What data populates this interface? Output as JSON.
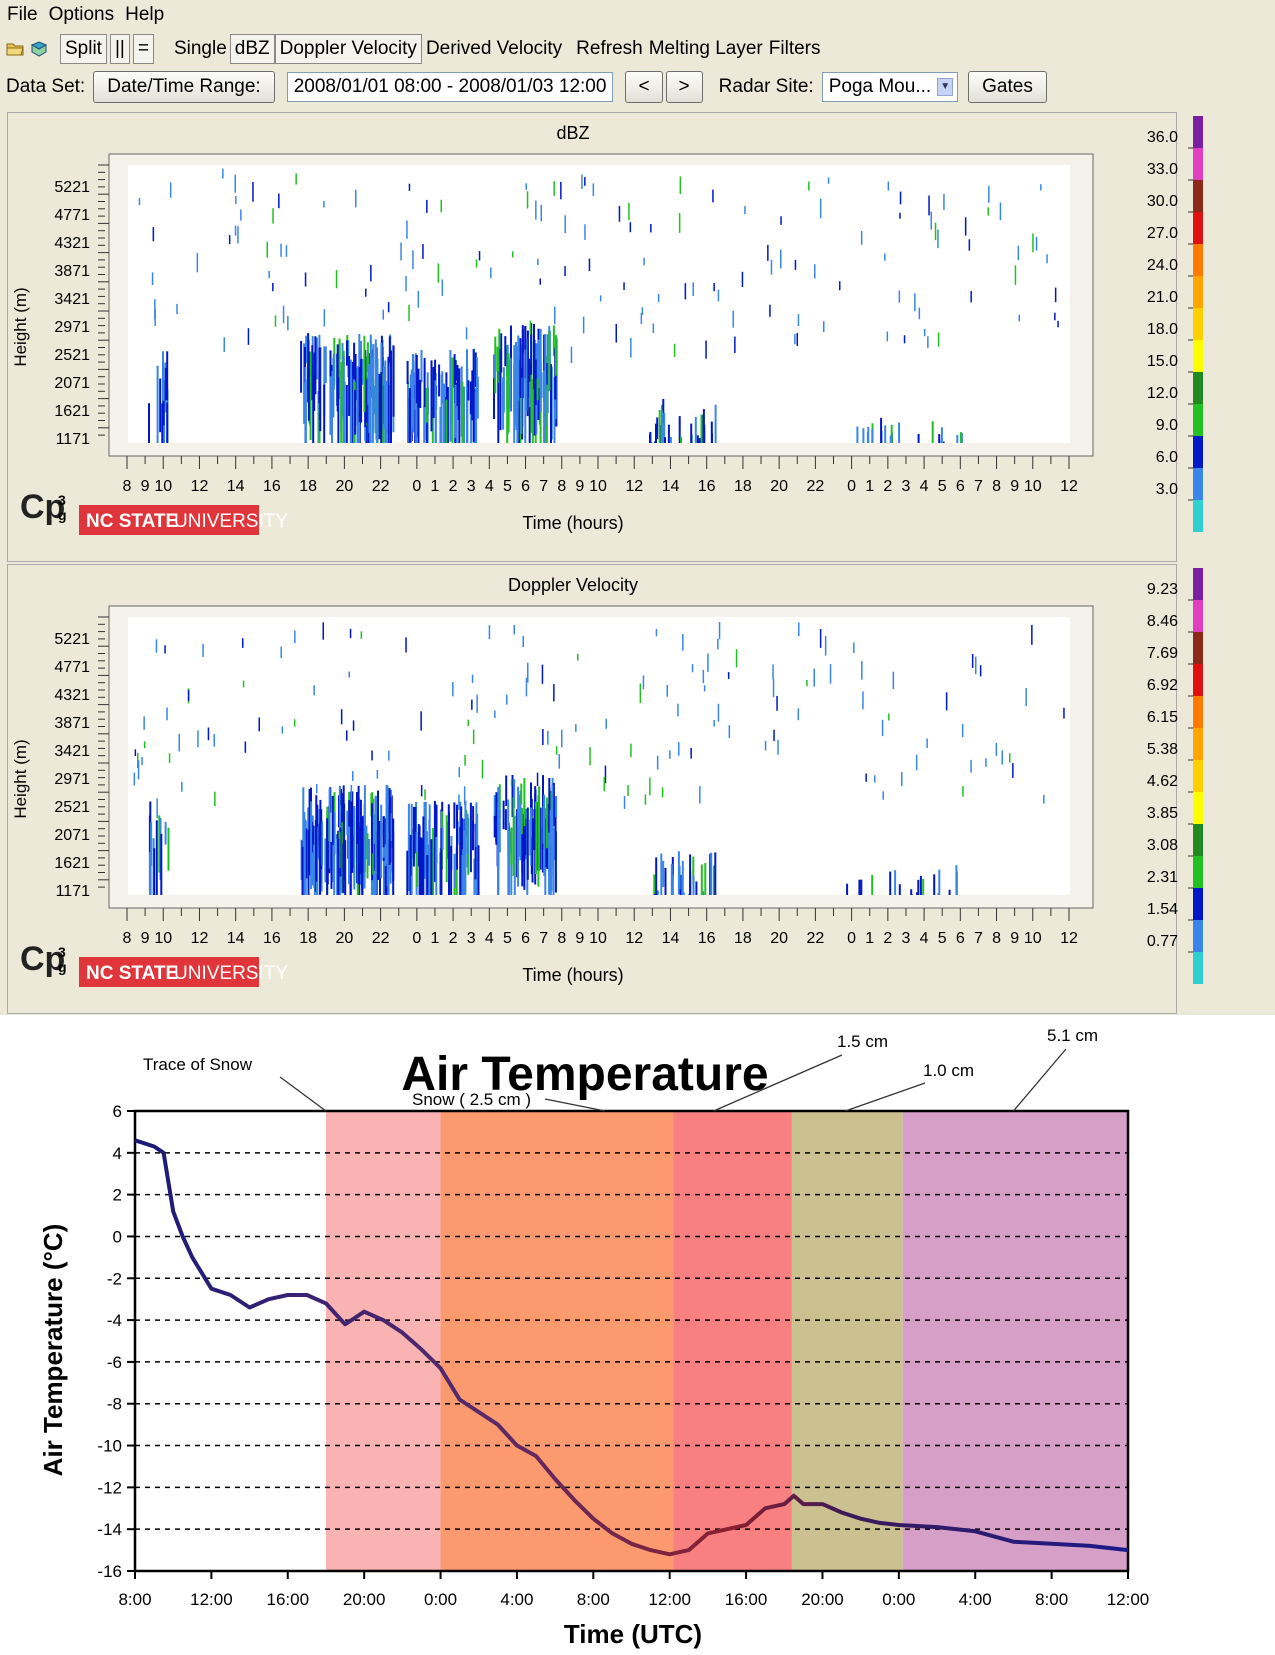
{
  "menu": {
    "items": [
      "File",
      "Options",
      "Help"
    ]
  },
  "toolbar": {
    "split": "Split",
    "pipes": "||",
    "equals": "=",
    "single": "Single",
    "dbz": "dBZ",
    "doppler": "Doppler Velocity",
    "derived": "Derived Velocity",
    "refresh": "Refresh",
    "melting": "Melting Layer",
    "filters": "Filters"
  },
  "datarow": {
    "data_set_label": "Data Set:",
    "date_range_button": "Date/Time Range:",
    "range_value": "2008/01/01 08:00 - 2008/01/03 12:00",
    "prev": "<",
    "next": ">",
    "radar_site_label": "Radar Site:",
    "radar_site_value": "Poga Mou...",
    "gates": "Gates"
  },
  "logo": {
    "cp3g": "Cp3g",
    "ncstate": "NC STATE",
    "university": "UNIVERSITY"
  },
  "radar_axes": {
    "ylabel": "Height (m)",
    "xlabel": "Time (hours)",
    "yticks": [
      "5221",
      "4771",
      "4321",
      "3871",
      "3421",
      "2971",
      "2521",
      "2071",
      "1621",
      "1171"
    ],
    "xticks": [
      "8",
      "9",
      "10",
      "12",
      "14",
      "16",
      "18",
      "20",
      "22",
      "0",
      "1",
      "2",
      "3",
      "4",
      "5",
      "6",
      "7",
      "8",
      "9",
      "10",
      "12",
      "14",
      "16",
      "18",
      "20",
      "22",
      "0",
      "1",
      "2",
      "3",
      "4",
      "5",
      "6",
      "7",
      "8",
      "9",
      "10",
      "12"
    ]
  },
  "dbz_panel": {
    "title": "dBZ",
    "scale_labels": [
      "36.0",
      "33.0",
      "30.0",
      "27.0",
      "24.0",
      "21.0",
      "18.0",
      "15.0",
      "12.0",
      "9.0",
      "6.0",
      "3.0"
    ]
  },
  "doppler_panel": {
    "title": "Doppler Velocity",
    "scale_labels": [
      "9.23",
      "8.46",
      "7.69",
      "6.92",
      "6.15",
      "5.38",
      "4.62",
      "3.85",
      "3.08",
      "2.31",
      "1.54",
      "0.77"
    ]
  },
  "colors": {
    "scale": [
      "#7b1fa2",
      "#e040c0",
      "#8b2a1a",
      "#e01010",
      "#ff7a00",
      "#ffa500",
      "#ffd000",
      "#ffff00",
      "#1f8a1f",
      "#22c022",
      "#0018c8",
      "#3a86e8",
      "#30d0d0"
    ]
  },
  "chart_data": {
    "type": "line",
    "title": "Air Temperature",
    "xlabel": "Time (UTC)",
    "ylabel": "Air Temperature (°C)",
    "ylim": [
      -16,
      6
    ],
    "yticks": [
      6,
      4,
      2,
      0,
      -2,
      -4,
      -6,
      -8,
      -10,
      -12,
      -14,
      -16
    ],
    "x_hours_range": [
      0,
      52
    ],
    "xtick_labels": [
      "8:00",
      "12:00",
      "16:00",
      "20:00",
      "0:00",
      "4:00",
      "8:00",
      "12:00",
      "16:00",
      "20:00",
      "0:00",
      "4:00",
      "8:00",
      "12:00"
    ],
    "grid": "horizontal dashed",
    "bands": [
      {
        "x0": 10,
        "x1": 16,
        "color": "#f9b3b3"
      },
      {
        "x0": 16,
        "x1": 28.2,
        "color": "#fb9a6f"
      },
      {
        "x0": 28.2,
        "x1": 34.4,
        "color": "#f98080"
      },
      {
        "x0": 34.4,
        "x1": 40.2,
        "color": "#cbc190"
      },
      {
        "x0": 40.2,
        "x1": 52,
        "color": "#d69fc8"
      }
    ],
    "annotations": [
      {
        "text": "Trace of Snow"
      },
      {
        "text": "Snow ( 2.5 cm )"
      },
      {
        "text": "1.5 cm"
      },
      {
        "text": "1.0 cm"
      },
      {
        "text": "5.1 cm"
      }
    ],
    "series": [
      {
        "x": [
          0,
          1,
          1.5,
          2,
          2.5,
          3,
          4,
          5,
          6,
          7,
          8,
          9,
          10,
          11,
          12,
          13,
          14,
          15,
          16,
          17,
          18,
          19,
          20,
          21,
          22,
          23,
          24,
          25,
          26,
          27,
          28,
          29,
          30,
          31,
          32,
          33,
          34,
          34.5,
          35,
          36,
          37,
          38,
          39,
          40,
          42,
          44,
          46,
          48,
          50,
          52
        ],
        "y": [
          4.6,
          4.3,
          4.0,
          1.2,
          0.0,
          -1.0,
          -2.5,
          -2.8,
          -3.4,
          -3.0,
          -2.8,
          -2.8,
          -3.2,
          -4.2,
          -3.6,
          -4.0,
          -4.6,
          -5.4,
          -6.3,
          -7.8,
          -8.4,
          -9.0,
          -10.0,
          -10.5,
          -11.6,
          -12.6,
          -13.5,
          -14.2,
          -14.7,
          -15.0,
          -15.2,
          -15.0,
          -14.2,
          -14.0,
          -13.8,
          -13.0,
          -12.8,
          -12.4,
          -12.8,
          -12.8,
          -13.2,
          -13.5,
          -13.7,
          -13.8,
          -13.9,
          -14.1,
          -14.6,
          -14.7,
          -14.8,
          -15.0
        ]
      }
    ]
  }
}
